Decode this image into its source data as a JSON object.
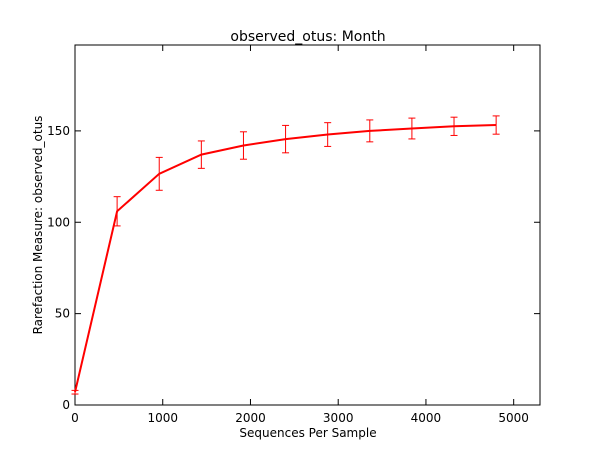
{
  "chart_data": {
    "type": "line",
    "title": "observed_otus: Month",
    "xlabel": "Sequences Per Sample",
    "ylabel": "Rarefaction Measure: observed_otus",
    "xlim": [
      0,
      5300
    ],
    "ylim": [
      0,
      197
    ],
    "xticks": [
      0,
      1000,
      2000,
      3000,
      4000,
      5000
    ],
    "yticks": [
      0,
      50,
      100,
      150
    ],
    "grid": false,
    "color": "#ff0000",
    "series": [
      {
        "x": [
          0,
          480,
          960,
          1440,
          1920,
          2400,
          2880,
          3360,
          3840,
          4320,
          4800
        ],
        "y": [
          7,
          106,
          126.5,
          137,
          142,
          145.5,
          148,
          150,
          151.3,
          152.5,
          153.2
        ],
        "err": [
          1,
          8,
          9,
          7.5,
          7.5,
          7.5,
          6.5,
          6,
          5.7,
          5,
          5
        ]
      }
    ]
  }
}
